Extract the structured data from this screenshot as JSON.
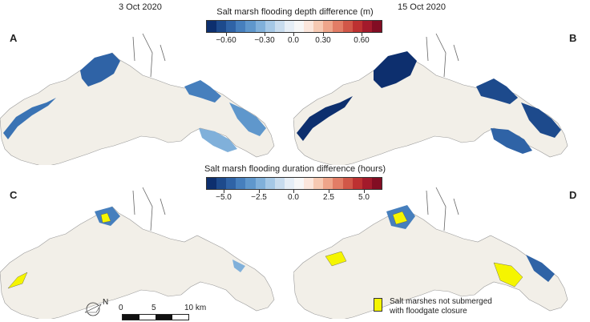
{
  "dates": {
    "left": "3 Oct 2020",
    "right": "15 Oct 2020"
  },
  "panels": {
    "a": "A",
    "b": "B",
    "c": "C",
    "d": "D"
  },
  "colorbar_depth": {
    "title": "Salt marsh flooding depth difference (m)",
    "ticks": [
      "−0.60",
      "−0.30",
      "0.0",
      "0.30",
      "0.60"
    ]
  },
  "colorbar_duration": {
    "title": "Salt marsh flooding duration difference (hours)",
    "ticks": [
      "−5.0",
      "−2.5",
      "0.0",
      "2.5",
      "5.0"
    ]
  },
  "colorscale": [
    "#0d2f6e",
    "#1d4a8c",
    "#2f63a6",
    "#467fbd",
    "#5f97cc",
    "#80b0da",
    "#a5c8e6",
    "#c8dcee",
    "#e6eef6",
    "#f7f7f7",
    "#fbe6dc",
    "#f6c9b2",
    "#eea58a",
    "#e27d66",
    "#d15748",
    "#bd3131",
    "#a31a2b",
    "#820d23"
  ],
  "colors": {
    "land": "#f2efe8",
    "yellow": "#f5f500"
  },
  "north_label": "N",
  "scale": {
    "labels": [
      "0",
      "5",
      "10 km"
    ]
  },
  "legend": {
    "line1": "Salt marshes not submerged",
    "line2": "with floodgate closure"
  }
}
